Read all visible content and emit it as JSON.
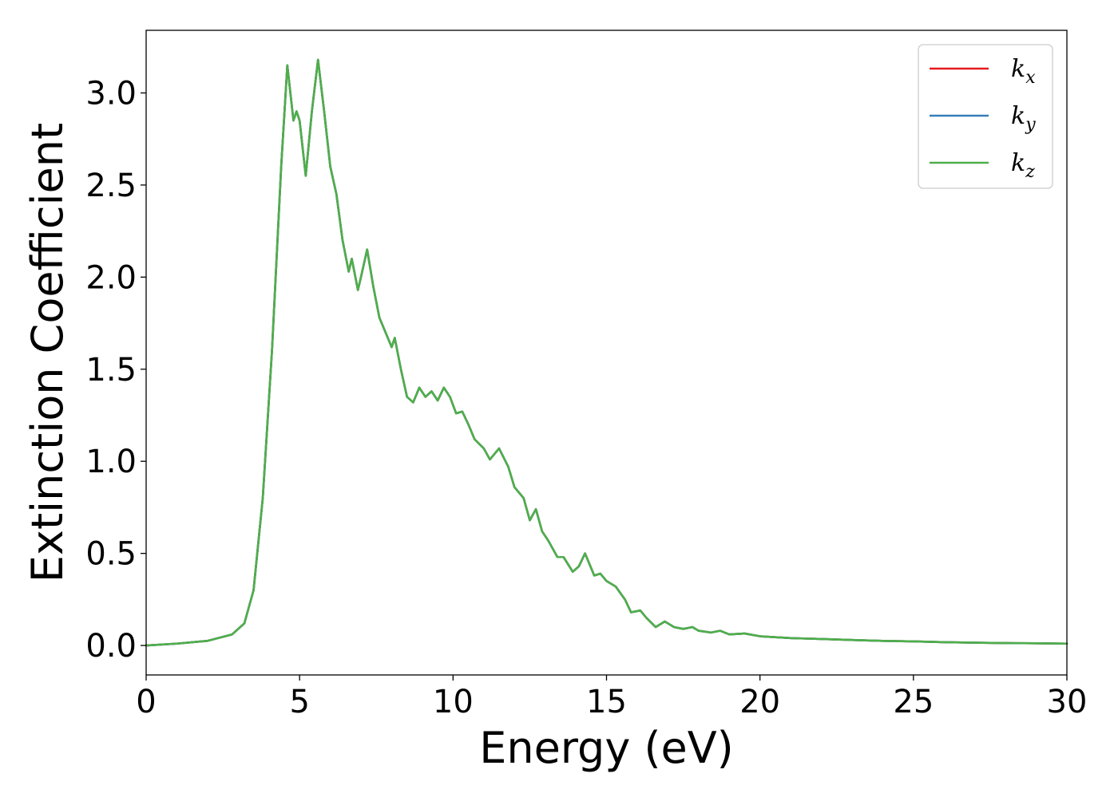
{
  "chart_data": {
    "type": "line",
    "title": "",
    "xlabel": "Energy (eV)",
    "ylabel": "Extinction Coefficient",
    "xlim": [
      0,
      30
    ],
    "ylim": [
      -0.16,
      3.34
    ],
    "xticks": [
      0,
      5,
      10,
      15,
      20,
      25,
      30
    ],
    "xtick_labels": [
      "0",
      "5",
      "10",
      "15",
      "20",
      "25",
      "30"
    ],
    "yticks": [
      0.0,
      0.5,
      1.0,
      1.5,
      2.0,
      2.5,
      3.0
    ],
    "ytick_labels": [
      "0.0",
      "0.5",
      "1.0",
      "1.5",
      "2.0",
      "2.5",
      "3.0"
    ],
    "grid": false,
    "legend_position": "top-right",
    "series": [
      {
        "name": "k",
        "subscript": "x",
        "color": "#e41a1c",
        "points": [
          [
            0,
            0.0
          ],
          [
            1,
            0.01
          ],
          [
            2,
            0.025
          ],
          [
            2.8,
            0.06
          ],
          [
            3.2,
            0.12
          ],
          [
            3.5,
            0.3
          ],
          [
            3.8,
            0.8
          ],
          [
            4.1,
            1.6
          ],
          [
            4.4,
            2.6
          ],
          [
            4.6,
            3.15
          ],
          [
            4.8,
            2.85
          ],
          [
            4.9,
            2.9
          ],
          [
            5.0,
            2.85
          ],
          [
            5.2,
            2.55
          ],
          [
            5.4,
            2.9
          ],
          [
            5.6,
            3.18
          ],
          [
            5.8,
            2.9
          ],
          [
            6.0,
            2.6
          ],
          [
            6.2,
            2.45
          ],
          [
            6.4,
            2.2
          ],
          [
            6.6,
            2.03
          ],
          [
            6.7,
            2.1
          ],
          [
            6.9,
            1.93
          ],
          [
            7.0,
            2.0
          ],
          [
            7.2,
            2.15
          ],
          [
            7.4,
            1.95
          ],
          [
            7.6,
            1.78
          ],
          [
            7.8,
            1.7
          ],
          [
            8.0,
            1.62
          ],
          [
            8.1,
            1.67
          ],
          [
            8.3,
            1.5
          ],
          [
            8.5,
            1.35
          ],
          [
            8.7,
            1.32
          ],
          [
            8.9,
            1.4
          ],
          [
            9.1,
            1.35
          ],
          [
            9.3,
            1.38
          ],
          [
            9.5,
            1.33
          ],
          [
            9.7,
            1.4
          ],
          [
            9.9,
            1.35
          ],
          [
            10.1,
            1.26
          ],
          [
            10.3,
            1.27
          ],
          [
            10.5,
            1.2
          ],
          [
            10.7,
            1.12
          ],
          [
            11.0,
            1.07
          ],
          [
            11.2,
            1.01
          ],
          [
            11.5,
            1.07
          ],
          [
            11.8,
            0.97
          ],
          [
            12.0,
            0.86
          ],
          [
            12.3,
            0.8
          ],
          [
            12.5,
            0.68
          ],
          [
            12.7,
            0.74
          ],
          [
            12.9,
            0.62
          ],
          [
            13.1,
            0.57
          ],
          [
            13.4,
            0.48
          ],
          [
            13.6,
            0.48
          ],
          [
            13.9,
            0.4
          ],
          [
            14.1,
            0.43
          ],
          [
            14.3,
            0.5
          ],
          [
            14.6,
            0.38
          ],
          [
            14.8,
            0.39
          ],
          [
            15.0,
            0.35
          ],
          [
            15.3,
            0.32
          ],
          [
            15.6,
            0.25
          ],
          [
            15.8,
            0.18
          ],
          [
            16.1,
            0.19
          ],
          [
            16.3,
            0.15
          ],
          [
            16.6,
            0.1
          ],
          [
            16.9,
            0.13
          ],
          [
            17.2,
            0.1
          ],
          [
            17.5,
            0.09
          ],
          [
            17.8,
            0.1
          ],
          [
            18.0,
            0.08
          ],
          [
            18.4,
            0.07
          ],
          [
            18.7,
            0.08
          ],
          [
            19.0,
            0.06
          ],
          [
            19.5,
            0.065
          ],
          [
            20.0,
            0.05
          ],
          [
            20.5,
            0.045
          ],
          [
            21.0,
            0.04
          ],
          [
            22.0,
            0.035
          ],
          [
            23.0,
            0.03
          ],
          [
            24.0,
            0.025
          ],
          [
            25.0,
            0.022
          ],
          [
            26.0,
            0.018
          ],
          [
            27.0,
            0.015
          ],
          [
            28.0,
            0.013
          ],
          [
            29.0,
            0.012
          ],
          [
            30.0,
            0.01
          ]
        ]
      },
      {
        "name": "k",
        "subscript": "y",
        "color": "#377eb8",
        "points": [
          [
            0,
            0.0
          ],
          [
            1,
            0.01
          ],
          [
            2,
            0.025
          ],
          [
            2.8,
            0.06
          ],
          [
            3.2,
            0.12
          ],
          [
            3.5,
            0.3
          ],
          [
            3.8,
            0.8
          ],
          [
            4.1,
            1.6
          ],
          [
            4.4,
            2.6
          ],
          [
            4.6,
            3.15
          ],
          [
            4.8,
            2.85
          ],
          [
            4.9,
            2.9
          ],
          [
            5.0,
            2.85
          ],
          [
            5.2,
            2.55
          ],
          [
            5.4,
            2.9
          ],
          [
            5.6,
            3.18
          ],
          [
            5.8,
            2.9
          ],
          [
            6.0,
            2.6
          ],
          [
            6.2,
            2.45
          ],
          [
            6.4,
            2.2
          ],
          [
            6.6,
            2.03
          ],
          [
            6.7,
            2.1
          ],
          [
            6.9,
            1.93
          ],
          [
            7.0,
            2.0
          ],
          [
            7.2,
            2.15
          ],
          [
            7.4,
            1.95
          ],
          [
            7.6,
            1.78
          ],
          [
            7.8,
            1.7
          ],
          [
            8.0,
            1.62
          ],
          [
            8.1,
            1.67
          ],
          [
            8.3,
            1.5
          ],
          [
            8.5,
            1.35
          ],
          [
            8.7,
            1.32
          ],
          [
            8.9,
            1.4
          ],
          [
            9.1,
            1.35
          ],
          [
            9.3,
            1.38
          ],
          [
            9.5,
            1.33
          ],
          [
            9.7,
            1.4
          ],
          [
            9.9,
            1.35
          ],
          [
            10.1,
            1.26
          ],
          [
            10.3,
            1.27
          ],
          [
            10.5,
            1.2
          ],
          [
            10.7,
            1.12
          ],
          [
            11.0,
            1.07
          ],
          [
            11.2,
            1.01
          ],
          [
            11.5,
            1.07
          ],
          [
            11.8,
            0.97
          ],
          [
            12.0,
            0.86
          ],
          [
            12.3,
            0.8
          ],
          [
            12.5,
            0.68
          ],
          [
            12.7,
            0.74
          ],
          [
            12.9,
            0.62
          ],
          [
            13.1,
            0.57
          ],
          [
            13.4,
            0.48
          ],
          [
            13.6,
            0.48
          ],
          [
            13.9,
            0.4
          ],
          [
            14.1,
            0.43
          ],
          [
            14.3,
            0.5
          ],
          [
            14.6,
            0.38
          ],
          [
            14.8,
            0.39
          ],
          [
            15.0,
            0.35
          ],
          [
            15.3,
            0.32
          ],
          [
            15.6,
            0.25
          ],
          [
            15.8,
            0.18
          ],
          [
            16.1,
            0.19
          ],
          [
            16.3,
            0.15
          ],
          [
            16.6,
            0.1
          ],
          [
            16.9,
            0.13
          ],
          [
            17.2,
            0.1
          ],
          [
            17.5,
            0.09
          ],
          [
            17.8,
            0.1
          ],
          [
            18.0,
            0.08
          ],
          [
            18.4,
            0.07
          ],
          [
            18.7,
            0.08
          ],
          [
            19.0,
            0.06
          ],
          [
            19.5,
            0.065
          ],
          [
            20.0,
            0.05
          ],
          [
            20.5,
            0.045
          ],
          [
            21.0,
            0.04
          ],
          [
            22.0,
            0.035
          ],
          [
            23.0,
            0.03
          ],
          [
            24.0,
            0.025
          ],
          [
            25.0,
            0.022
          ],
          [
            26.0,
            0.018
          ],
          [
            27.0,
            0.015
          ],
          [
            28.0,
            0.013
          ],
          [
            29.0,
            0.012
          ],
          [
            30.0,
            0.01
          ]
        ]
      },
      {
        "name": "k",
        "subscript": "z",
        "color": "#4daf4a",
        "points": [
          [
            0,
            0.0
          ],
          [
            1,
            0.01
          ],
          [
            2,
            0.025
          ],
          [
            2.8,
            0.06
          ],
          [
            3.2,
            0.12
          ],
          [
            3.5,
            0.3
          ],
          [
            3.8,
            0.8
          ],
          [
            4.1,
            1.6
          ],
          [
            4.4,
            2.6
          ],
          [
            4.6,
            3.15
          ],
          [
            4.8,
            2.85
          ],
          [
            4.9,
            2.9
          ],
          [
            5.0,
            2.85
          ],
          [
            5.2,
            2.55
          ],
          [
            5.4,
            2.9
          ],
          [
            5.6,
            3.18
          ],
          [
            5.8,
            2.9
          ],
          [
            6.0,
            2.6
          ],
          [
            6.2,
            2.45
          ],
          [
            6.4,
            2.2
          ],
          [
            6.6,
            2.03
          ],
          [
            6.7,
            2.1
          ],
          [
            6.9,
            1.93
          ],
          [
            7.0,
            2.0
          ],
          [
            7.2,
            2.15
          ],
          [
            7.4,
            1.95
          ],
          [
            7.6,
            1.78
          ],
          [
            7.8,
            1.7
          ],
          [
            8.0,
            1.62
          ],
          [
            8.1,
            1.67
          ],
          [
            8.3,
            1.5
          ],
          [
            8.5,
            1.35
          ],
          [
            8.7,
            1.32
          ],
          [
            8.9,
            1.4
          ],
          [
            9.1,
            1.35
          ],
          [
            9.3,
            1.38
          ],
          [
            9.5,
            1.33
          ],
          [
            9.7,
            1.4
          ],
          [
            9.9,
            1.35
          ],
          [
            10.1,
            1.26
          ],
          [
            10.3,
            1.27
          ],
          [
            10.5,
            1.2
          ],
          [
            10.7,
            1.12
          ],
          [
            11.0,
            1.07
          ],
          [
            11.2,
            1.01
          ],
          [
            11.5,
            1.07
          ],
          [
            11.8,
            0.97
          ],
          [
            12.0,
            0.86
          ],
          [
            12.3,
            0.8
          ],
          [
            12.5,
            0.68
          ],
          [
            12.7,
            0.74
          ],
          [
            12.9,
            0.62
          ],
          [
            13.1,
            0.57
          ],
          [
            13.4,
            0.48
          ],
          [
            13.6,
            0.48
          ],
          [
            13.9,
            0.4
          ],
          [
            14.1,
            0.43
          ],
          [
            14.3,
            0.5
          ],
          [
            14.6,
            0.38
          ],
          [
            14.8,
            0.39
          ],
          [
            15.0,
            0.35
          ],
          [
            15.3,
            0.32
          ],
          [
            15.6,
            0.25
          ],
          [
            15.8,
            0.18
          ],
          [
            16.1,
            0.19
          ],
          [
            16.3,
            0.15
          ],
          [
            16.6,
            0.1
          ],
          [
            16.9,
            0.13
          ],
          [
            17.2,
            0.1
          ],
          [
            17.5,
            0.09
          ],
          [
            17.8,
            0.1
          ],
          [
            18.0,
            0.08
          ],
          [
            18.4,
            0.07
          ],
          [
            18.7,
            0.08
          ],
          [
            19.0,
            0.06
          ],
          [
            19.5,
            0.065
          ],
          [
            20.0,
            0.05
          ],
          [
            20.5,
            0.045
          ],
          [
            21.0,
            0.04
          ],
          [
            22.0,
            0.035
          ],
          [
            23.0,
            0.03
          ],
          [
            24.0,
            0.025
          ],
          [
            25.0,
            0.022
          ],
          [
            26.0,
            0.018
          ],
          [
            27.0,
            0.015
          ],
          [
            28.0,
            0.013
          ],
          [
            29.0,
            0.012
          ],
          [
            30.0,
            0.01
          ]
        ]
      }
    ]
  }
}
